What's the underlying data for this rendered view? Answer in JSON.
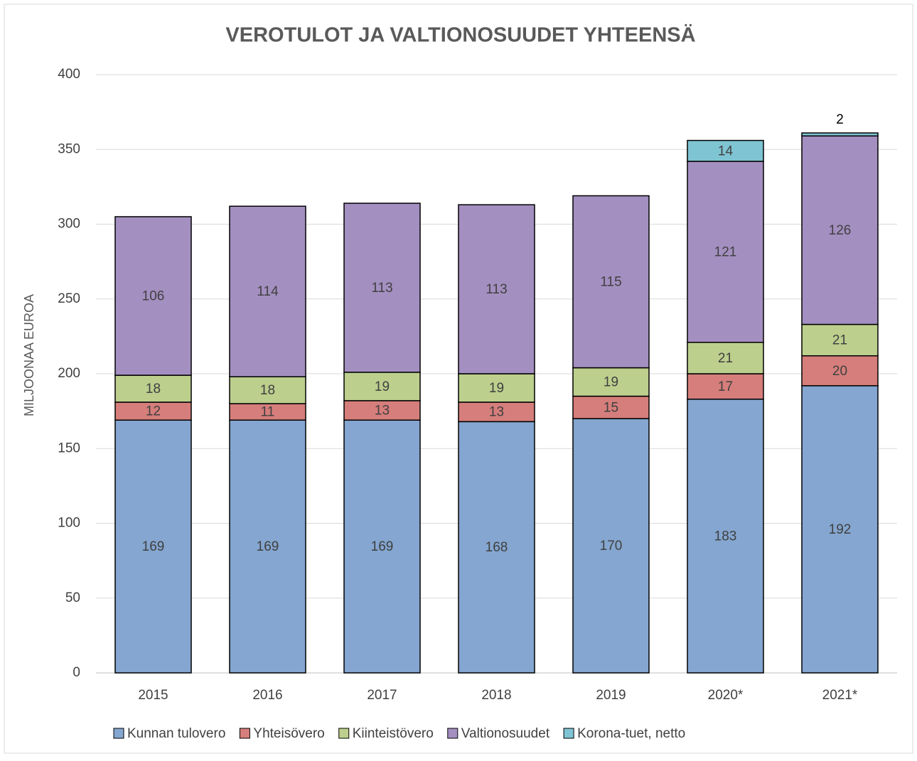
{
  "chart_data": {
    "type": "stacked_bar",
    "title": "VEROTULOT JA VALTIONOSUUDET YHTEENSÄ",
    "y_label": "MILJOONAA EUROA",
    "categories": [
      "2015",
      "2016",
      "2017",
      "2018",
      "2019",
      "2020*",
      "2021*"
    ],
    "series": [
      {
        "name": "Kunnan tulovero",
        "color": "#84a6d0",
        "values": [
          169,
          169,
          169,
          168,
          170,
          183,
          192
        ]
      },
      {
        "name": "Yhteisövero",
        "color": "#d57e7b",
        "values": [
          12,
          11,
          13,
          13,
          15,
          17,
          20
        ]
      },
      {
        "name": "Kiinteistövero",
        "color": "#bccf8d",
        "values": [
          18,
          18,
          19,
          19,
          19,
          21,
          21
        ]
      },
      {
        "name": "Valtionosuudet",
        "color": "#a48fc1",
        "values": [
          106,
          114,
          113,
          113,
          115,
          121,
          126
        ]
      },
      {
        "name": "Korona-tuet, netto",
        "color": "#7fc4d3",
        "values": [
          null,
          null,
          null,
          null,
          null,
          14,
          2
        ]
      }
    ],
    "ylim": [
      0,
      400
    ],
    "yticks": [
      0,
      50,
      100,
      150,
      200,
      250,
      300,
      350,
      400
    ],
    "grid": true,
    "legend": "bottom"
  }
}
